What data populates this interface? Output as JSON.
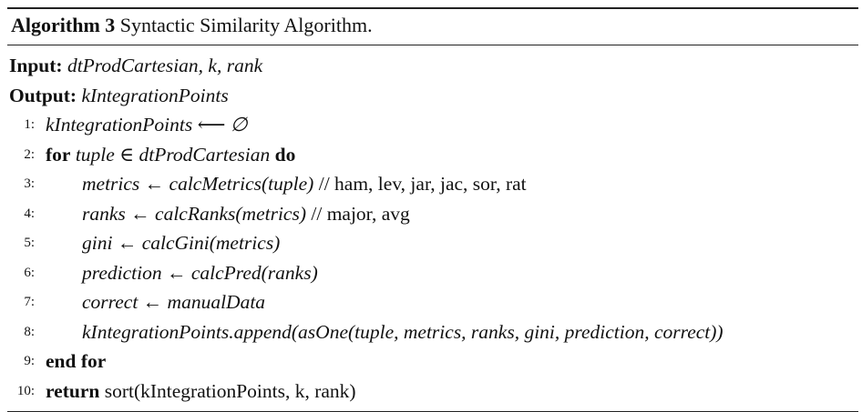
{
  "algorithm": {
    "label": "Algorithm 3",
    "title": "Syntactic Similarity Algorithm.",
    "input_label": "Input:",
    "input_value": "dtProdCartesian, k, rank",
    "output_label": "Output:",
    "output_value": "kIntegrationPoints",
    "lines": [
      {
        "num": "1:",
        "text": "kIntegrationPoints ⟵ ∅"
      },
      {
        "num": "2:",
        "kw": "for",
        "text": "tuple ∈ dtProdCartesian",
        "kw2": "do"
      },
      {
        "num": "3:",
        "text": "metrics ← calcMetrics(tuple)",
        "comment": "// ham, lev, jar, jac, sor, rat"
      },
      {
        "num": "4:",
        "text": "ranks ← calcRanks(metrics)",
        "comment": "// major, avg"
      },
      {
        "num": "5:",
        "text": "gini ← calcGini(metrics)"
      },
      {
        "num": "6:",
        "text": "prediction ← calcPred(ranks)"
      },
      {
        "num": "7:",
        "text": "correct ← manualData"
      },
      {
        "num": "8:",
        "text": "kIntegrationPoints.append(asOne(tuple, metrics, ranks, gini, prediction, correct))"
      },
      {
        "num": "9:",
        "kw": "end for"
      },
      {
        "num": "10:",
        "kw": "return",
        "text": "sort(kIntegrationPoints, k, rank)"
      }
    ]
  }
}
